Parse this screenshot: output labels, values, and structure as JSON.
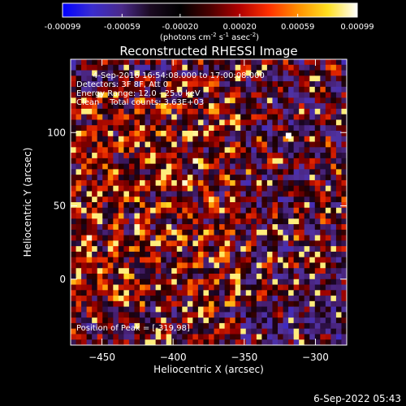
{
  "chart_data": {
    "type": "heatmap",
    "title": "Reconstructed RHESSI Image",
    "xlabel": "Heliocentric X (arcsec)",
    "ylabel": "Heliocentric Y (arcsec)",
    "xlim": [
      -472,
      -278
    ],
    "ylim": [
      -45,
      150
    ],
    "x_ticks": [
      -450,
      -400,
      -350,
      -300
    ],
    "y_ticks": [
      0,
      50,
      100
    ],
    "grid": false,
    "colorbar": {
      "range": [
        -0.00099,
        0.00099
      ],
      "tick_values": [
        -0.00099,
        -0.00059,
        -0.0002,
        0.0002,
        0.00059,
        0.00099
      ],
      "tick_labels": [
        "-0.00099",
        "-0.00059",
        "-0.00020",
        "0.00020",
        "0.00059",
        "0.00099"
      ],
      "unit_label": "(photons cm",
      "unit_exp1": "-2",
      "unit_mid": " s",
      "unit_exp2": "-1",
      "unit_mid2": " asec",
      "unit_exp3": "-2",
      "unit_end": ")",
      "colors": [
        "#0000ff",
        "#3a2dcf",
        "#4a2a8a",
        "#1a0a20",
        "#000000",
        "#4a0000",
        "#b00000",
        "#ff3000",
        "#ff9000",
        "#ffe020",
        "#ffffff"
      ]
    },
    "annotations": [
      "4-Sep-2016 16:54:08.000 to 17:00:08.000",
      "Detectors: 3F 8F, Att 0",
      "Energy Range: 12.0 - 25.0 keV",
      "Clean    Total counts: 3.63E+03"
    ],
    "peak_label": "Position of Peak = [-319,98]",
    "peak": [
      -319,
      98
    ]
  },
  "footer": {
    "timestamp": "6-Sep-2022 05:43"
  }
}
